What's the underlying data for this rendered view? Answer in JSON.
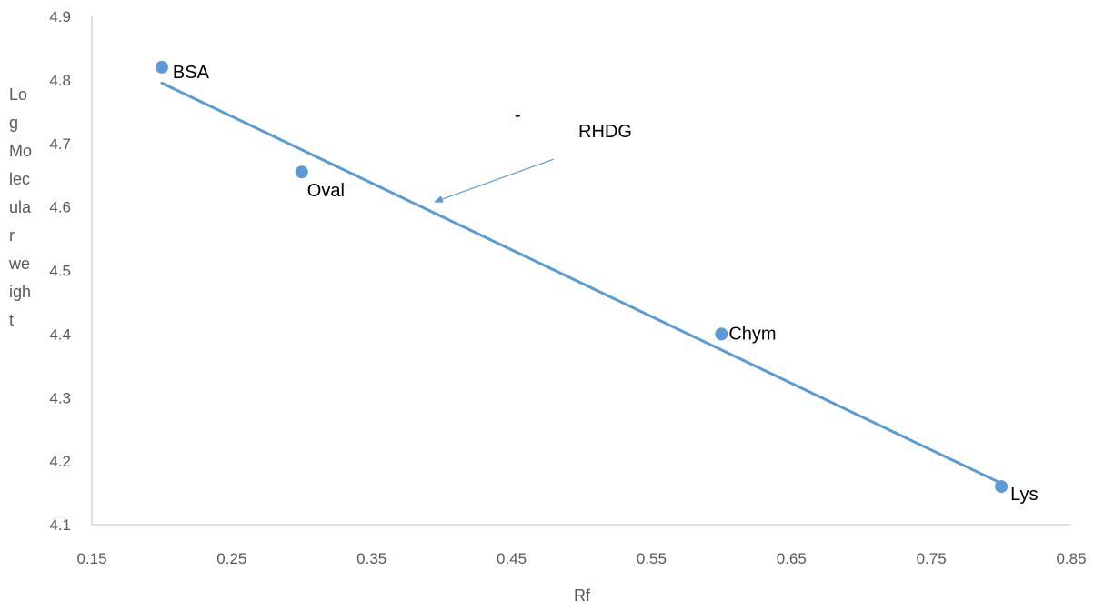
{
  "chart_data": {
    "type": "scatter",
    "title": "",
    "xlabel": "Rf",
    "ylabel_lines": [
      "Lo",
      "g",
      "Mo",
      "lec",
      "ula",
      "r",
      "we",
      "igh",
      "t"
    ],
    "xlim": [
      0.15,
      0.85
    ],
    "ylim": [
      4.1,
      4.9
    ],
    "x_ticks": [
      0.15,
      0.25,
      0.35,
      0.45,
      0.55,
      0.65,
      0.75,
      0.85
    ],
    "x_tick_labels": [
      "0.15",
      "0.25",
      "0.35",
      "0.45",
      "0.55",
      "0.65",
      "0.75",
      "0.85"
    ],
    "y_ticks": [
      4.1,
      4.2,
      4.3,
      4.4,
      4.5,
      4.6,
      4.7,
      4.8,
      4.9
    ],
    "y_tick_labels": [
      "4.1",
      "4.2",
      "4.3",
      "4.4",
      "4.5",
      "4.6",
      "4.7",
      "4.8",
      "4.9"
    ],
    "grid": false,
    "points": [
      {
        "label": "BSA",
        "x": 0.2,
        "y": 4.82
      },
      {
        "label": "Oval",
        "x": 0.3,
        "y": 4.655
      },
      {
        "label": "Chym",
        "x": 0.6,
        "y": 4.4
      },
      {
        "label": "Lys",
        "x": 0.8,
        "y": 4.16
      }
    ],
    "trendline": {
      "x": [
        0.2,
        0.8
      ],
      "y": [
        4.795,
        4.165
      ]
    },
    "annotations": [
      {
        "text": "RHDG",
        "arrow_from": [
          0.48,
          4.675
        ],
        "arrow_to": [
          0.395,
          4.608
        ]
      },
      {
        "text": "-"
      }
    ],
    "colors": {
      "marker": "#5b9bd5",
      "line": "#5b9bd5",
      "axis": "#bfbfbf"
    }
  }
}
